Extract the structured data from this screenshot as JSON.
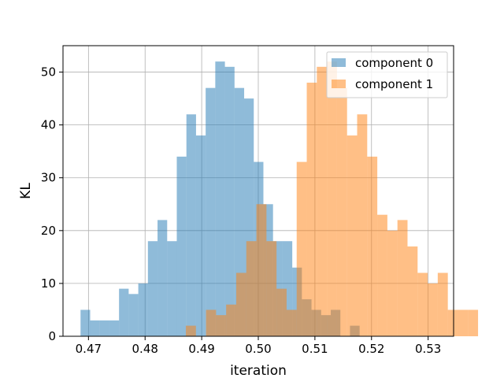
{
  "chart_data": {
    "type": "bar",
    "subtype": "histogram",
    "title": "",
    "xlabel": "iteration",
    "ylabel": "KL",
    "xlim": [
      0.4655,
      0.5345
    ],
    "ylim": [
      0,
      55
    ],
    "xticks": [
      "0.47",
      "0.48",
      "0.49",
      "0.50",
      "0.51",
      "0.52",
      "0.53"
    ],
    "yticks": [
      "0",
      "10",
      "20",
      "30",
      "40",
      "50"
    ],
    "grid": true,
    "legend_position": "top-right",
    "overlap_alpha": 0.5,
    "series": [
      {
        "name": "component 0",
        "color": "#1f77b4",
        "bin_start": 0.4686,
        "bin_width": 0.0017,
        "counts": [
          5,
          3,
          3,
          3,
          9,
          8,
          10,
          18,
          22,
          18,
          34,
          42,
          38,
          47,
          52,
          51,
          47,
          45,
          33,
          25,
          18,
          18,
          13,
          7,
          5,
          4,
          5,
          0,
          2
        ]
      },
      {
        "name": "component 1",
        "color": "#ff7f0e",
        "bin_start": 0.4872,
        "bin_width": 0.00178,
        "counts": [
          2,
          0,
          5,
          4,
          6,
          12,
          18,
          25,
          18,
          9,
          5,
          33,
          48,
          51,
          52,
          47,
          38,
          42,
          34,
          23,
          20,
          22,
          17,
          12,
          10,
          12,
          5,
          5,
          5
        ]
      }
    ]
  }
}
